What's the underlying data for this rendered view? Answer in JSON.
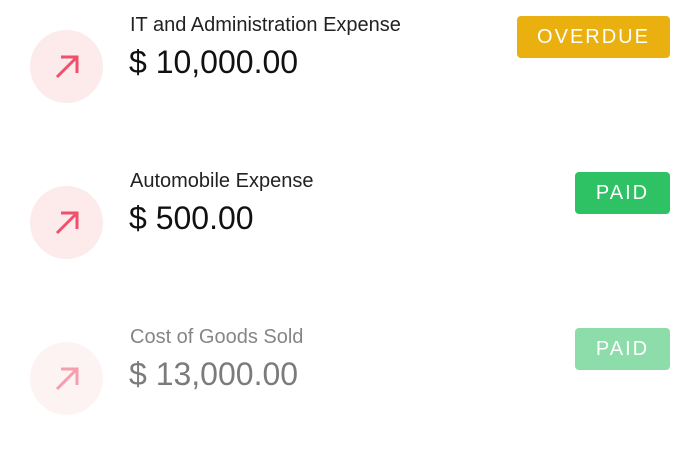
{
  "colors": {
    "overdue": "#e9b00f",
    "paid": "#2fc265",
    "arrow": "#f0506e",
    "circle_bg": "#fdeaea"
  },
  "icon": "arrow-up-right-icon",
  "items": [
    {
      "title": "IT and Administration Expense",
      "amount": "$ 10,000.00",
      "status": "OVERDUE"
    },
    {
      "title": "Automobile Expense",
      "amount": "$ 500.00",
      "status": "PAID"
    },
    {
      "title": "Cost of Goods Sold",
      "amount": "$ 13,000.00",
      "status": "PAID"
    }
  ]
}
